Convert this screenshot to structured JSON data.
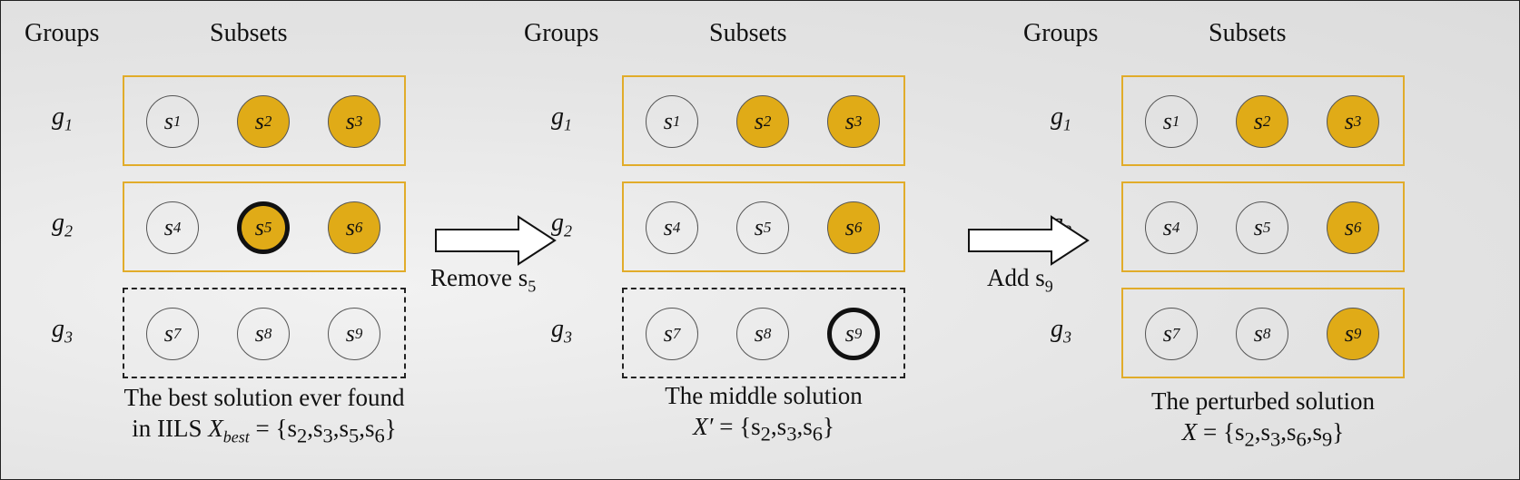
{
  "panels": [
    {
      "header_groups": "Groups",
      "header_subsets": "Subsets",
      "groups": [
        {
          "label": "g",
          "sub": "1",
          "selected_group": true,
          "subsets": [
            {
              "s": "s",
              "sub": "1",
              "selected": false,
              "highlight": false
            },
            {
              "s": "s",
              "sub": "2",
              "selected": true,
              "highlight": false
            },
            {
              "s": "s",
              "sub": "3",
              "selected": true,
              "highlight": false
            }
          ]
        },
        {
          "label": "g",
          "sub": "2",
          "selected_group": true,
          "subsets": [
            {
              "s": "s",
              "sub": "4",
              "selected": false,
              "highlight": false
            },
            {
              "s": "s",
              "sub": "5",
              "selected": true,
              "highlight": true
            },
            {
              "s": "s",
              "sub": "6",
              "selected": true,
              "highlight": false
            }
          ]
        },
        {
          "label": "g",
          "sub": "3",
          "selected_group": false,
          "subsets": [
            {
              "s": "s",
              "sub": "7",
              "selected": false,
              "highlight": false
            },
            {
              "s": "s",
              "sub": "8",
              "selected": false,
              "highlight": false
            },
            {
              "s": "s",
              "sub": "9",
              "selected": false,
              "highlight": false
            }
          ]
        }
      ],
      "caption_line1": "The best solution ever found",
      "caption_line2_prefix": "in IILS ",
      "caption_var": "X",
      "caption_var_sub": "best",
      "caption_set": " = {s",
      "caption_items": [
        "2",
        "3",
        "5",
        "6"
      ]
    },
    {
      "header_groups": "Groups",
      "header_subsets": "Subsets",
      "groups": [
        {
          "label": "g",
          "sub": "1",
          "selected_group": true,
          "subsets": [
            {
              "s": "s",
              "sub": "1",
              "selected": false,
              "highlight": false
            },
            {
              "s": "s",
              "sub": "2",
              "selected": true,
              "highlight": false
            },
            {
              "s": "s",
              "sub": "3",
              "selected": true,
              "highlight": false
            }
          ]
        },
        {
          "label": "g",
          "sub": "2",
          "selected_group": true,
          "subsets": [
            {
              "s": "s",
              "sub": "4",
              "selected": false,
              "highlight": false
            },
            {
              "s": "s",
              "sub": "5",
              "selected": false,
              "highlight": false
            },
            {
              "s": "s",
              "sub": "6",
              "selected": true,
              "highlight": false
            }
          ]
        },
        {
          "label": "g",
          "sub": "3",
          "selected_group": false,
          "subsets": [
            {
              "s": "s",
              "sub": "7",
              "selected": false,
              "highlight": false
            },
            {
              "s": "s",
              "sub": "8",
              "selected": false,
              "highlight": false
            },
            {
              "s": "s",
              "sub": "9",
              "selected": false,
              "highlight": true
            }
          ]
        }
      ],
      "caption_line1": "The middle solution",
      "caption_line2_prefix": "",
      "caption_var": "X′",
      "caption_var_sub": "",
      "caption_set": " = {s",
      "caption_items": [
        "2",
        "3",
        "6"
      ]
    },
    {
      "header_groups": "Groups",
      "header_subsets": "Subsets",
      "groups": [
        {
          "label": "g",
          "sub": "1",
          "selected_group": true,
          "subsets": [
            {
              "s": "s",
              "sub": "1",
              "selected": false,
              "highlight": false
            },
            {
              "s": "s",
              "sub": "2",
              "selected": true,
              "highlight": false
            },
            {
              "s": "s",
              "sub": "3",
              "selected": true,
              "highlight": false
            }
          ]
        },
        {
          "label": "g",
          "sub": "2",
          "selected_group": true,
          "subsets": [
            {
              "s": "s",
              "sub": "4",
              "selected": false,
              "highlight": false
            },
            {
              "s": "s",
              "sub": "5",
              "selected": false,
              "highlight": false
            },
            {
              "s": "s",
              "sub": "6",
              "selected": true,
              "highlight": false
            }
          ]
        },
        {
          "label": "g",
          "sub": "3",
          "selected_group": true,
          "subsets": [
            {
              "s": "s",
              "sub": "7",
              "selected": false,
              "highlight": false
            },
            {
              "s": "s",
              "sub": "8",
              "selected": false,
              "highlight": false
            },
            {
              "s": "s",
              "sub": "9",
              "selected": true,
              "highlight": false
            }
          ]
        }
      ],
      "caption_line1": "The perturbed solution",
      "caption_line2_prefix": "",
      "caption_var": "X",
      "caption_var_sub": "",
      "caption_set": " = {s",
      "caption_items": [
        "2",
        "3",
        "6",
        "9"
      ]
    }
  ],
  "arrows": [
    {
      "label": "Remove s",
      "sub": "5"
    },
    {
      "label": "Add s",
      "sub": "9"
    }
  ],
  "colors": {
    "selected_fill": "#e0ab17",
    "group_border": "#e1ac2a"
  }
}
